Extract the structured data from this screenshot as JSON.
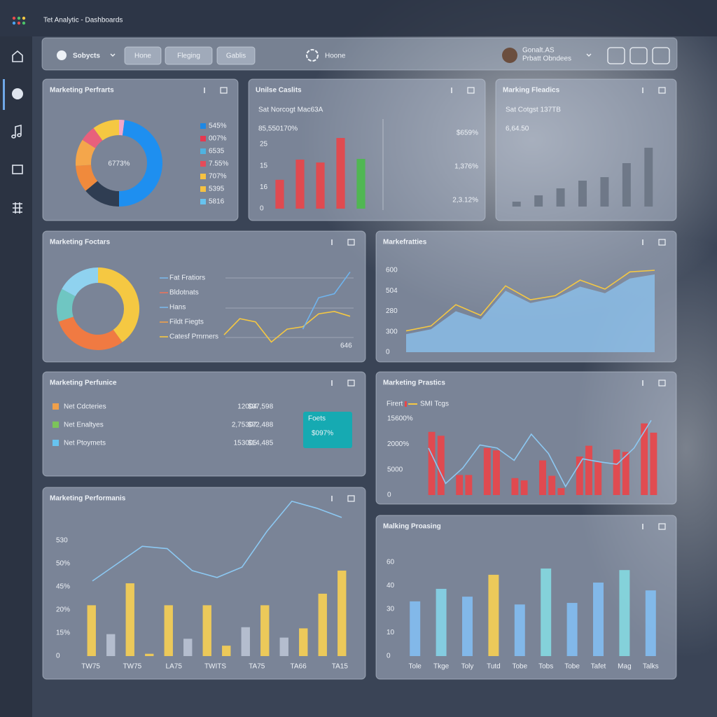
{
  "app_title": "Tet Analytic - Dashboards",
  "toolbar": {
    "menu": "Sobycts",
    "tabs": [
      "Hone",
      "Fleging",
      "Gablis"
    ],
    "center": "Hoone",
    "user_name": "Gonalt.AS",
    "user_role": "Prbatt Obndees"
  },
  "panels": [
    {
      "title": "Marketing Perfrarts",
      "chart": {
        "type": "donut",
        "center_label": "6773%",
        "values": [
          2,
          48,
          14,
          10,
          10,
          6,
          10
        ],
        "colors": [
          "#f3a6c8",
          "#1e8ff0",
          "#2f3d52",
          "#f08a3c",
          "#f4a64b",
          "#e8607c",
          "#f5c842"
        ]
      },
      "legend": {
        "labels": [
          "545%",
          "007%",
          "6535",
          "7.55%",
          "707%",
          "5395",
          "5816"
        ],
        "colors": [
          "#1e88e5",
          "#e53950",
          "#4fb3e0",
          "#e54b5a",
          "#f5c242",
          "#f5c242",
          "#67c3ef"
        ]
      }
    },
    {
      "title": "Unilse Caslits",
      "subtitle": "Sat Norcogt Mac63A",
      "headline": "85,550170%",
      "chart": {
        "type": "bar",
        "y_labels": [
          "25",
          "15",
          "16",
          "0"
        ],
        "ylim": [
          0,
          100
        ],
        "values": [
          40,
          68,
          64,
          98,
          69
        ],
        "colors": [
          "#e8454a",
          "#e8454a",
          "#e8454a",
          "#e8454a",
          "#4cbb4c"
        ]
      },
      "stats": [
        "$659%",
        "1,376%",
        "2,3.12%"
      ]
    },
    {
      "title": "Marking Fleadics",
      "subtitle": "Sat Cotgst 137TB",
      "headline": "6,64.50",
      "chart": {
        "type": "bar",
        "ylim": [
          0,
          90
        ],
        "values": [
          7,
          16,
          26,
          37,
          42,
          62,
          84
        ],
        "color": "#6b7584"
      }
    },
    {
      "title": "Marketing Foctars",
      "chart": {
        "type": "donut",
        "values": [
          40,
          30,
          13,
          17
        ],
        "colors": [
          "#f5c842",
          "#f07a42",
          "#6fc6c2",
          "#8fd2ef"
        ]
      },
      "legend": {
        "labels": [
          "Fat Fratiors",
          "Bldotnats",
          "Hans",
          "Fildt Fiegts",
          "Catesf Prnrners"
        ],
        "colors": [
          "#7ab8ea",
          "#e8745c",
          "#7ab8ea",
          "#f0a04a",
          "#f5c842"
        ]
      },
      "line_chart": {
        "type": "line",
        "ylim": [
          0,
          100
        ],
        "x_label": "646",
        "series": [
          {
            "color": "#f5c842",
            "values": [
              19,
              39,
              35,
              10,
              26,
              29,
              45,
              48,
              42
            ]
          },
          {
            "color": "#6fb4ee",
            "values": [
              null,
              null,
              null,
              null,
              null,
              26,
              65,
              70,
              97
            ]
          }
        ]
      }
    },
    {
      "title": "Markefratties",
      "chart": {
        "type": "area",
        "y_labels": [
          "600",
          "504",
          "280",
          "300",
          "0"
        ],
        "ylim": [
          0,
          100
        ],
        "series": [
          {
            "color": "#8cc4f2",
            "values": [
              22,
              28,
              50,
              40,
              75,
              60,
              66,
              80,
              72,
              90,
              95
            ]
          },
          {
            "color": "#f5c842",
            "values": [
              26,
              32,
              58,
              45,
              81,
              64,
              69,
              88,
              77,
              98,
              100
            ]
          }
        ]
      }
    },
    {
      "title": "Marketing Perfunice",
      "rows": [
        {
          "color": "#f0a04a",
          "label": "Net Cdcteries",
          "count": "12004",
          "amount": "$37,598"
        },
        {
          "color": "#7cc45a",
          "label": "Net Enaltyes",
          "count": "2,75307",
          "amount": "$72,488"
        },
        {
          "color": "#67c3ef",
          "label": "Net Ptoymets",
          "count": "153005",
          "amount": "$14,485"
        }
      ],
      "badge": {
        "label": "Foets",
        "value": "$097%"
      }
    },
    {
      "title": "Marketing Prastics",
      "legend": {
        "labels": [
          "Firert",
          "SMI Tcgs"
        ],
        "colors": [
          "#e8454a",
          "#f5c842"
        ]
      },
      "chart": {
        "type": "bar",
        "y_labels": [
          "15600%",
          "2000%",
          "5000",
          "0"
        ],
        "ylim": [
          0,
          100
        ],
        "color": "#e8454a",
        "values": [
          82,
          77,
          null,
          26,
          26,
          null,
          61,
          58,
          null,
          22,
          19,
          null,
          45,
          25,
          9,
          null,
          50,
          64,
          43,
          null,
          59,
          56,
          null,
          93,
          81
        ],
        "line": {
          "color": "#8cc8f2",
          "values": [
            61,
            15,
            35,
            65,
            61,
            45,
            79,
            54,
            11,
            47,
            43,
            40,
            61,
            97
          ]
        }
      }
    },
    {
      "title": "Marketing Performanis",
      "chart": {
        "type": "bar",
        "y_labels": [
          "530",
          "50%",
          "45%",
          "20%",
          "15%",
          "0"
        ],
        "ylim": [
          0,
          140
        ],
        "values": [
          44,
          19,
          63,
          2,
          44,
          15,
          44,
          9,
          25,
          44,
          16,
          24,
          54,
          74
        ],
        "colors": [
          "#f5cf55",
          "#b9c2d2",
          "#f5cf55",
          "#f5cf55",
          "#f5cf55",
          "#b9c2d2",
          "#f5cf55",
          "#f5cf55",
          "#b9c2d2",
          "#f5cf55",
          "#b9c2d2",
          "#f5cf55",
          "#f5cf55",
          "#f5cf55"
        ],
        "x_labels": [
          "TW75",
          "TW75",
          "LA75",
          "TWITS",
          "TA75",
          "TA66",
          "TA15"
        ],
        "line": {
          "color": "#8cc8f2",
          "values": [
            65,
            80,
            95,
            93,
            74,
            68,
            77,
            108,
            134,
            128,
            120
          ]
        }
      }
    },
    {
      "title": "Malking Proasing",
      "chart": {
        "type": "bar",
        "y_labels": [
          "60",
          "40",
          "30",
          "10",
          "0"
        ],
        "ylim": [
          0,
          60
        ],
        "values": [
          35,
          43,
          38,
          52,
          33,
          56,
          34,
          47,
          55,
          42
        ],
        "colors": [
          "#82bdf0",
          "#84d2e6",
          "#82bdf0",
          "#f5cf55",
          "#82bdf0",
          "#84d8e0",
          "#82bdf0",
          "#82bdf0",
          "#84d8e0",
          "#82bdf0"
        ],
        "x_labels": [
          "Tole",
          "Tkge",
          "Toly",
          "Tutd",
          "Tobe",
          "Tobs",
          "Tobe",
          "Tafet",
          "Mag",
          "Talks"
        ]
      }
    }
  ]
}
